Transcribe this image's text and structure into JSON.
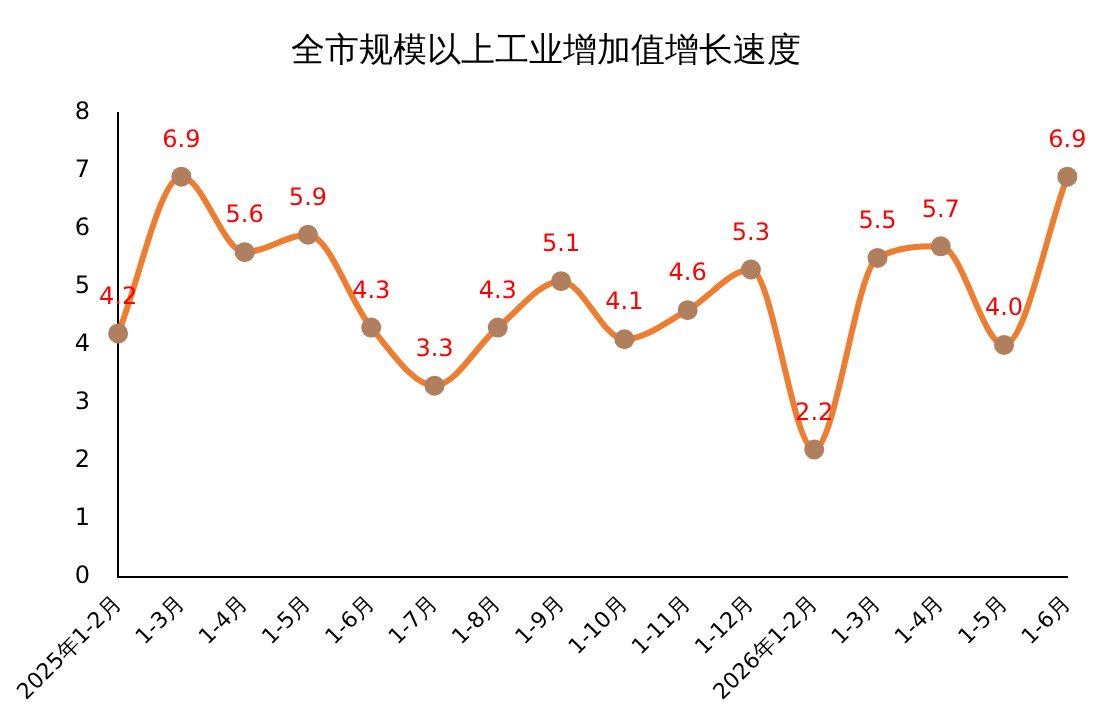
{
  "chart_data": {
    "type": "line",
    "title": "全市规模以上工业增加值增长速度",
    "categories": [
      "2025年1-2月",
      "1-3月",
      "1-4月",
      "1-5月",
      "1-6月",
      "1-7月",
      "1-8月",
      "1-9月",
      "1-10月",
      "1-11月",
      "1-12月",
      "2026年1-2月",
      "1-3月",
      "1-4月",
      "1-5月",
      "1-6月"
    ],
    "series": [
      {
        "color": "#ed7d31",
        "values": [
          4.2,
          6.9,
          5.6,
          5.9,
          4.3,
          3.3,
          4.3,
          5.1,
          4.1,
          4.6,
          5.3,
          2.2,
          5.5,
          5.7,
          4.0,
          6.9
        ],
        "value_labels": [
          "4.2",
          "6.9",
          "5.6",
          "5.9",
          "4.3",
          "3.3",
          "4.3",
          "5.1",
          "4.1",
          "4.6",
          "5.3",
          "2.2",
          "5.5",
          "5.7",
          "4.0",
          "6.9"
        ]
      }
    ],
    "ylim": [
      0,
      8
    ],
    "yticks": [
      0,
      1,
      2,
      3,
      4,
      5,
      6,
      7,
      8
    ],
    "grid": false,
    "legend": false,
    "marker": "circle",
    "line_style": "solid"
  }
}
